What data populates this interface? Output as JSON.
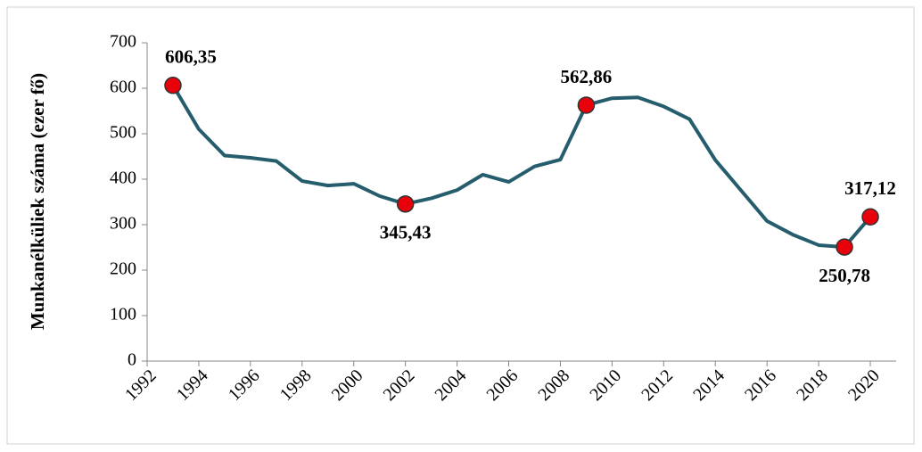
{
  "chart_data": {
    "type": "line",
    "y_label": "Munkanélküliek száma (ezer fő)",
    "x": [
      1993,
      1994,
      1995,
      1996,
      1997,
      1998,
      1999,
      2000,
      2001,
      2002,
      2003,
      2004,
      2005,
      2006,
      2007,
      2008,
      2009,
      2010,
      2011,
      2012,
      2013,
      2014,
      2015,
      2016,
      2017,
      2018,
      2019,
      2020
    ],
    "series": [
      {
        "name": "Munkanélküliek",
        "color": "#265d6c",
        "marker_color": "#e8000b",
        "values": [
          606.35,
          510,
          452,
          447,
          440,
          396,
          386,
          390,
          363,
          345.43,
          358,
          376,
          410,
          394,
          428,
          443,
          562.86,
          578,
          580,
          560,
          532,
          442,
          375,
          308,
          278,
          255,
          250.78,
          317.12
        ],
        "value_labels": [
          "606,35",
          null,
          null,
          null,
          null,
          null,
          null,
          null,
          null,
          "345,43",
          null,
          null,
          null,
          null,
          null,
          null,
          "562,86",
          null,
          null,
          null,
          null,
          null,
          null,
          null,
          null,
          null,
          "250,78",
          "317,12"
        ]
      }
    ],
    "xlim": [
      1992,
      2021
    ],
    "xticks": [
      1992,
      1994,
      1996,
      1998,
      2000,
      2002,
      2004,
      2006,
      2008,
      2010,
      2012,
      2014,
      2016,
      2018,
      2020
    ],
    "ylim": [
      0,
      700
    ],
    "yticks": [
      0,
      100,
      200,
      300,
      400,
      500,
      600,
      700
    ],
    "grid": false
  }
}
